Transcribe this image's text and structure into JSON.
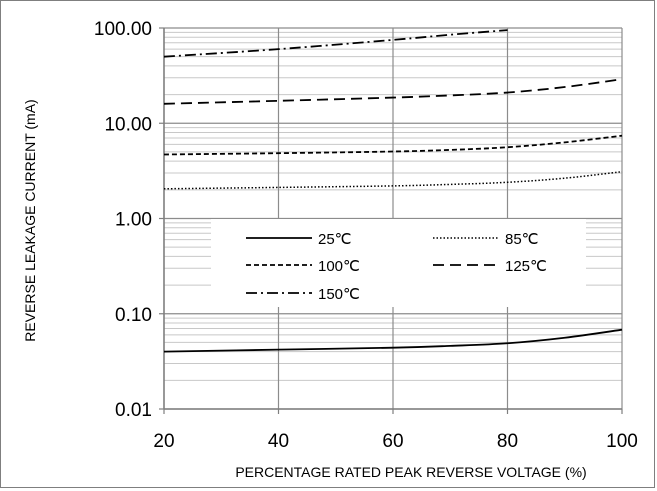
{
  "chart_data": {
    "type": "line",
    "title": "",
    "xlabel": "PERCENTAGE RATED PEAK REVERSE VOLTAGE (%)",
    "ylabel": "REVERSE LEAKAGE CURRENT (mA)",
    "xlim": [
      20,
      100
    ],
    "ylim": [
      0.01,
      100
    ],
    "yscale": "log",
    "x_ticks": [
      "20",
      "40",
      "60",
      "80",
      "100"
    ],
    "y_ticks": [
      "0.01",
      "0.10",
      "1.00",
      "10.00",
      "100.00"
    ],
    "grid": true,
    "legend_position": "center",
    "series": [
      {
        "name": "25℃",
        "dash": "solid",
        "x": [
          20,
          40,
          60,
          70,
          80,
          90,
          100
        ],
        "values": [
          0.04,
          0.042,
          0.044,
          0.046,
          0.049,
          0.056,
          0.068
        ]
      },
      {
        "name": "85℃",
        "dash": "dotted",
        "x": [
          20,
          40,
          60,
          70,
          80,
          90,
          100
        ],
        "values": [
          2.05,
          2.12,
          2.2,
          2.28,
          2.4,
          2.65,
          3.1
        ]
      },
      {
        "name": "100℃",
        "dash": "short-dash",
        "x": [
          20,
          40,
          60,
          70,
          80,
          90,
          100
        ],
        "values": [
          4.7,
          4.85,
          5.05,
          5.25,
          5.6,
          6.3,
          7.4
        ]
      },
      {
        "name": "125℃",
        "dash": "long-dash",
        "x": [
          20,
          40,
          60,
          70,
          80,
          90,
          100
        ],
        "values": [
          16,
          17.2,
          18.6,
          19.6,
          21,
          24,
          29
        ]
      },
      {
        "name": "150℃",
        "dash": "dash-dot",
        "x": [
          20,
          40,
          60,
          70,
          80
        ],
        "values": [
          50,
          60,
          75,
          85,
          95
        ]
      }
    ]
  }
}
